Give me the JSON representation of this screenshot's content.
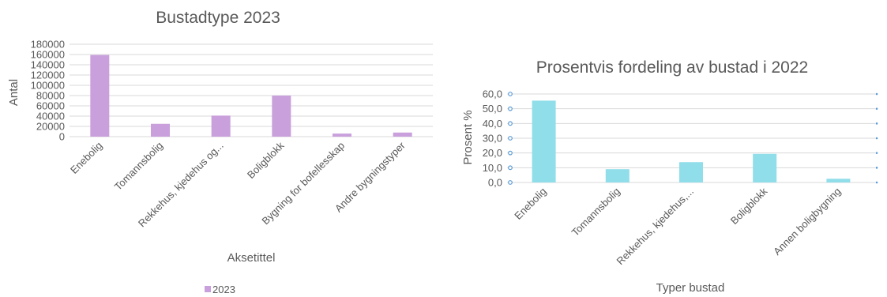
{
  "chart_data": [
    {
      "type": "bar",
      "title": "Bustadtype 2023",
      "xlabel": "Aksetittel",
      "ylabel": "Antal",
      "ylim": [
        0,
        180000
      ],
      "yticks": [
        "0",
        "20000",
        "40000",
        "60000",
        "80000",
        "100000",
        "120000",
        "140000",
        "160000",
        "180000"
      ],
      "categories": [
        "Enebolig",
        "Tomannsbolig",
        "Rekkehus, kjedehus og...",
        "Boligblokk",
        "Bygning for bofellesskap",
        "Andre bygningstyper"
      ],
      "series": [
        {
          "name": "2023",
          "values": [
            159000,
            25000,
            41000,
            80000,
            6000,
            8000
          ]
        }
      ],
      "grid": true,
      "legend_position": "bottom",
      "colors": {
        "bar": "#c9a0dc",
        "grid": "#d9d9d9",
        "text": "#595959"
      }
    },
    {
      "type": "bar",
      "title": "Prosentvis fordeling av bustad i 2022",
      "xlabel": "Typer bustad",
      "ylabel": "Prosent %",
      "ylim": [
        0,
        60
      ],
      "yticks": [
        "0,0",
        "10,0",
        "20,0",
        "30,0",
        "40,0",
        "50,0",
        "60,0"
      ],
      "categories": [
        "Enebolig",
        "Tomannsbolig",
        "Rekkehus, kjedehus,...",
        "Boligblokk",
        "Annen boligbygning"
      ],
      "series": [
        {
          "values": [
            55.5,
            9.0,
            13.8,
            19.4,
            2.5
          ]
        }
      ],
      "grid": true,
      "colors": {
        "bar": "#8fdeea",
        "grid": "#d9d9d9",
        "handle": "#5b9bd5",
        "text": "#595959"
      }
    }
  ]
}
